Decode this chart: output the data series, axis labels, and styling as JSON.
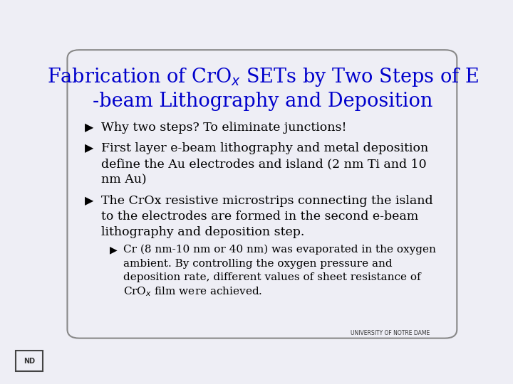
{
  "title_line1": "Fabrication of CrO$_{x}$ SETs by Two Steps of E",
  "title_line2": "-beam Lithography and Deposition",
  "title_color": "#0000CC",
  "background_color": "#EEEEF5",
  "text_color": "#000000",
  "bullet1": "Why two steps? To eliminate junctions!",
  "bullet2_line1": "First layer e-beam lithography and metal deposition",
  "bullet2_line2": "define the Au electrodes and island (2 nm Ti and 10",
  "bullet2_line3": "nm Au)",
  "bullet3_line1": "The CrOx resistive microstrips connecting the island",
  "bullet3_line2": "to the electrodes are formed in the second e-beam",
  "bullet3_line3": "lithography and deposition step.",
  "sub_bullet_line1": "Cr (8 nm-10 nm or 40 nm) was evaporated in the oxygen",
  "sub_bullet_line2": "ambient. By controlling the oxygen pressure and",
  "sub_bullet_line3": "deposition rate, different values of sheet resistance of",
  "sub_bullet_line4": "CrO$_{x}$ film were achieved.",
  "footer": "UNIVERSITY OF NOTRE DAME",
  "border_color": "#888888"
}
